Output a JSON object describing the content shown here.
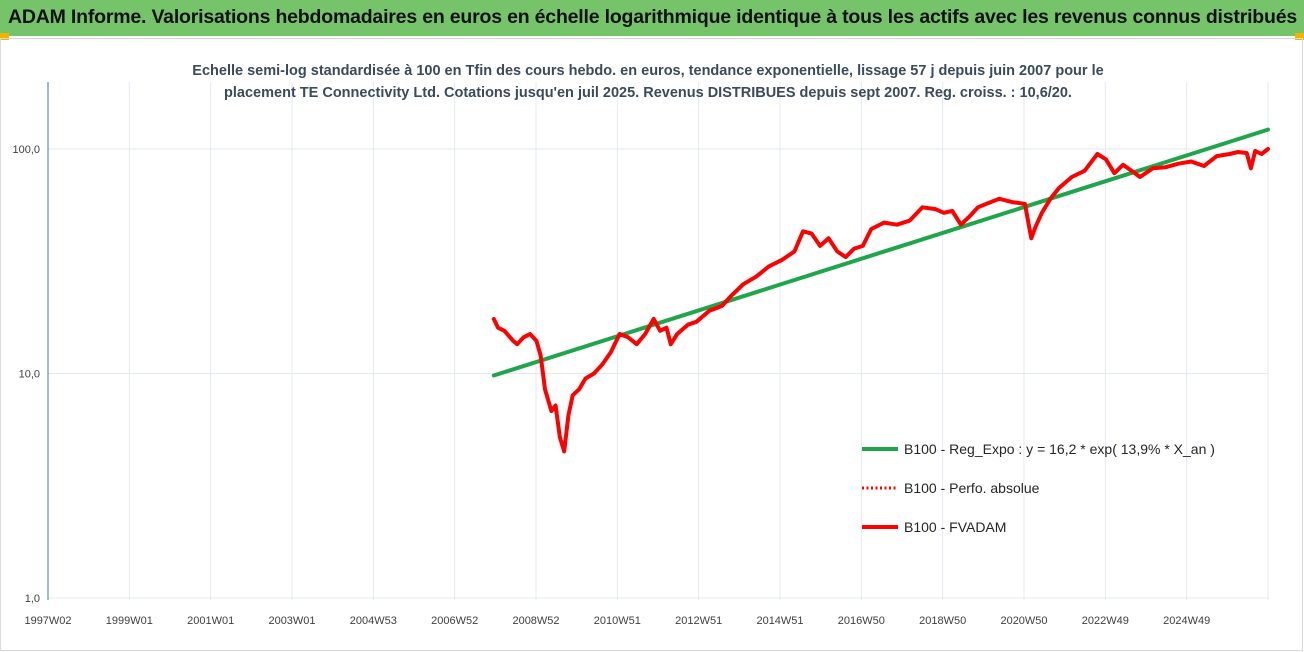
{
  "banner": {
    "title": "ADAM Informe. Valorisations hebdomadaires en euros en échelle logarithmique identique à tous les actifs avec les revenus connus distribués",
    "color": "#76c46a"
  },
  "chart_data": {
    "type": "line",
    "title_lines": [
      "Echelle semi-log standardisée à 100 en Tfin des cours hebdo. en euros, tendance exponentielle, lissage 57 j depuis juin 2007 pour le",
      "placement TE Connectivity Ltd. Cotations jusqu'en juil 2025. Revenus DISTRIBUES depuis sept 2007. Reg. croiss. : 10,6/20."
    ],
    "y_scale": "log",
    "ylim": [
      1,
      100
    ],
    "y_ticks": [
      "1,0",
      "10,0",
      "100,0"
    ],
    "x_ticks": [
      "1997W02",
      "1999W01",
      "2001W01",
      "2003W01",
      "2004W53",
      "2006W52",
      "2008W52",
      "2010W51",
      "2012W51",
      "2014W51",
      "2016W50",
      "2018W50",
      "2020W50",
      "2022W49",
      "2024W49"
    ],
    "xlim": [
      1997.0,
      2025.6
    ],
    "grid": "vertical",
    "legend_position": "right",
    "series": [
      {
        "name": "B100 - Reg_Expo : y = 16,2 * exp( 13,9% *  X_an )",
        "color": "#1fa64a",
        "style": "solid",
        "x": [
          2007.45,
          2025.6
        ],
        "y": [
          9.8,
          122
        ]
      },
      {
        "name": "B100 - Perfo. absolue",
        "color": "#ff0000",
        "style": "dotted",
        "x": [],
        "y": []
      },
      {
        "name": "B100 - FVADAM",
        "color": "#ff0000",
        "style": "solid",
        "x": [
          2007.45,
          2007.55,
          2007.7,
          2007.9,
          2008.0,
          2008.15,
          2008.3,
          2008.45,
          2008.55,
          2008.65,
          2008.8,
          2008.9,
          2009.0,
          2009.1,
          2009.2,
          2009.3,
          2009.45,
          2009.6,
          2009.8,
          2010.0,
          2010.2,
          2010.4,
          2010.6,
          2010.8,
          2011.0,
          2011.2,
          2011.35,
          2011.5,
          2011.6,
          2011.75,
          2012.0,
          2012.2,
          2012.5,
          2012.8,
          2013.0,
          2013.3,
          2013.6,
          2013.9,
          2014.2,
          2014.5,
          2014.7,
          2014.9,
          2015.1,
          2015.3,
          2015.5,
          2015.7,
          2015.9,
          2016.1,
          2016.3,
          2016.6,
          2016.9,
          2017.2,
          2017.5,
          2017.8,
          2018.0,
          2018.2,
          2018.4,
          2018.6,
          2018.8,
          2019.0,
          2019.3,
          2019.6,
          2019.9,
          2020.05,
          2020.15,
          2020.3,
          2020.5,
          2020.7,
          2021.0,
          2021.3,
          2021.6,
          2021.8,
          2022.0,
          2022.2,
          2022.4,
          2022.6,
          2022.9,
          2023.2,
          2023.5,
          2023.8,
          2024.1,
          2024.4,
          2024.7,
          2024.9,
          2025.1,
          2025.2,
          2025.3,
          2025.45,
          2025.6
        ],
        "y": [
          17.5,
          16,
          15.5,
          14,
          13.5,
          14.5,
          15,
          14,
          12,
          8.5,
          6.8,
          7.2,
          5.2,
          4.5,
          6.5,
          8,
          8.5,
          9.5,
          10,
          11,
          12.5,
          15,
          14.5,
          13.5,
          15,
          17.5,
          15.5,
          16,
          13.5,
          15,
          16.5,
          17,
          19,
          20,
          22,
          25,
          27,
          30,
          32,
          35,
          43,
          42,
          37,
          40,
          35,
          33,
          36,
          37,
          44,
          47,
          46,
          48,
          55,
          54,
          52,
          53,
          46,
          50,
          55,
          57,
          60,
          58,
          57,
          40,
          45,
          52,
          60,
          67,
          75,
          80,
          95,
          90,
          78,
          85,
          80,
          75,
          82,
          83,
          86,
          88,
          84,
          93,
          95,
          97,
          96,
          82,
          98,
          95,
          100
        ]
      }
    ]
  }
}
